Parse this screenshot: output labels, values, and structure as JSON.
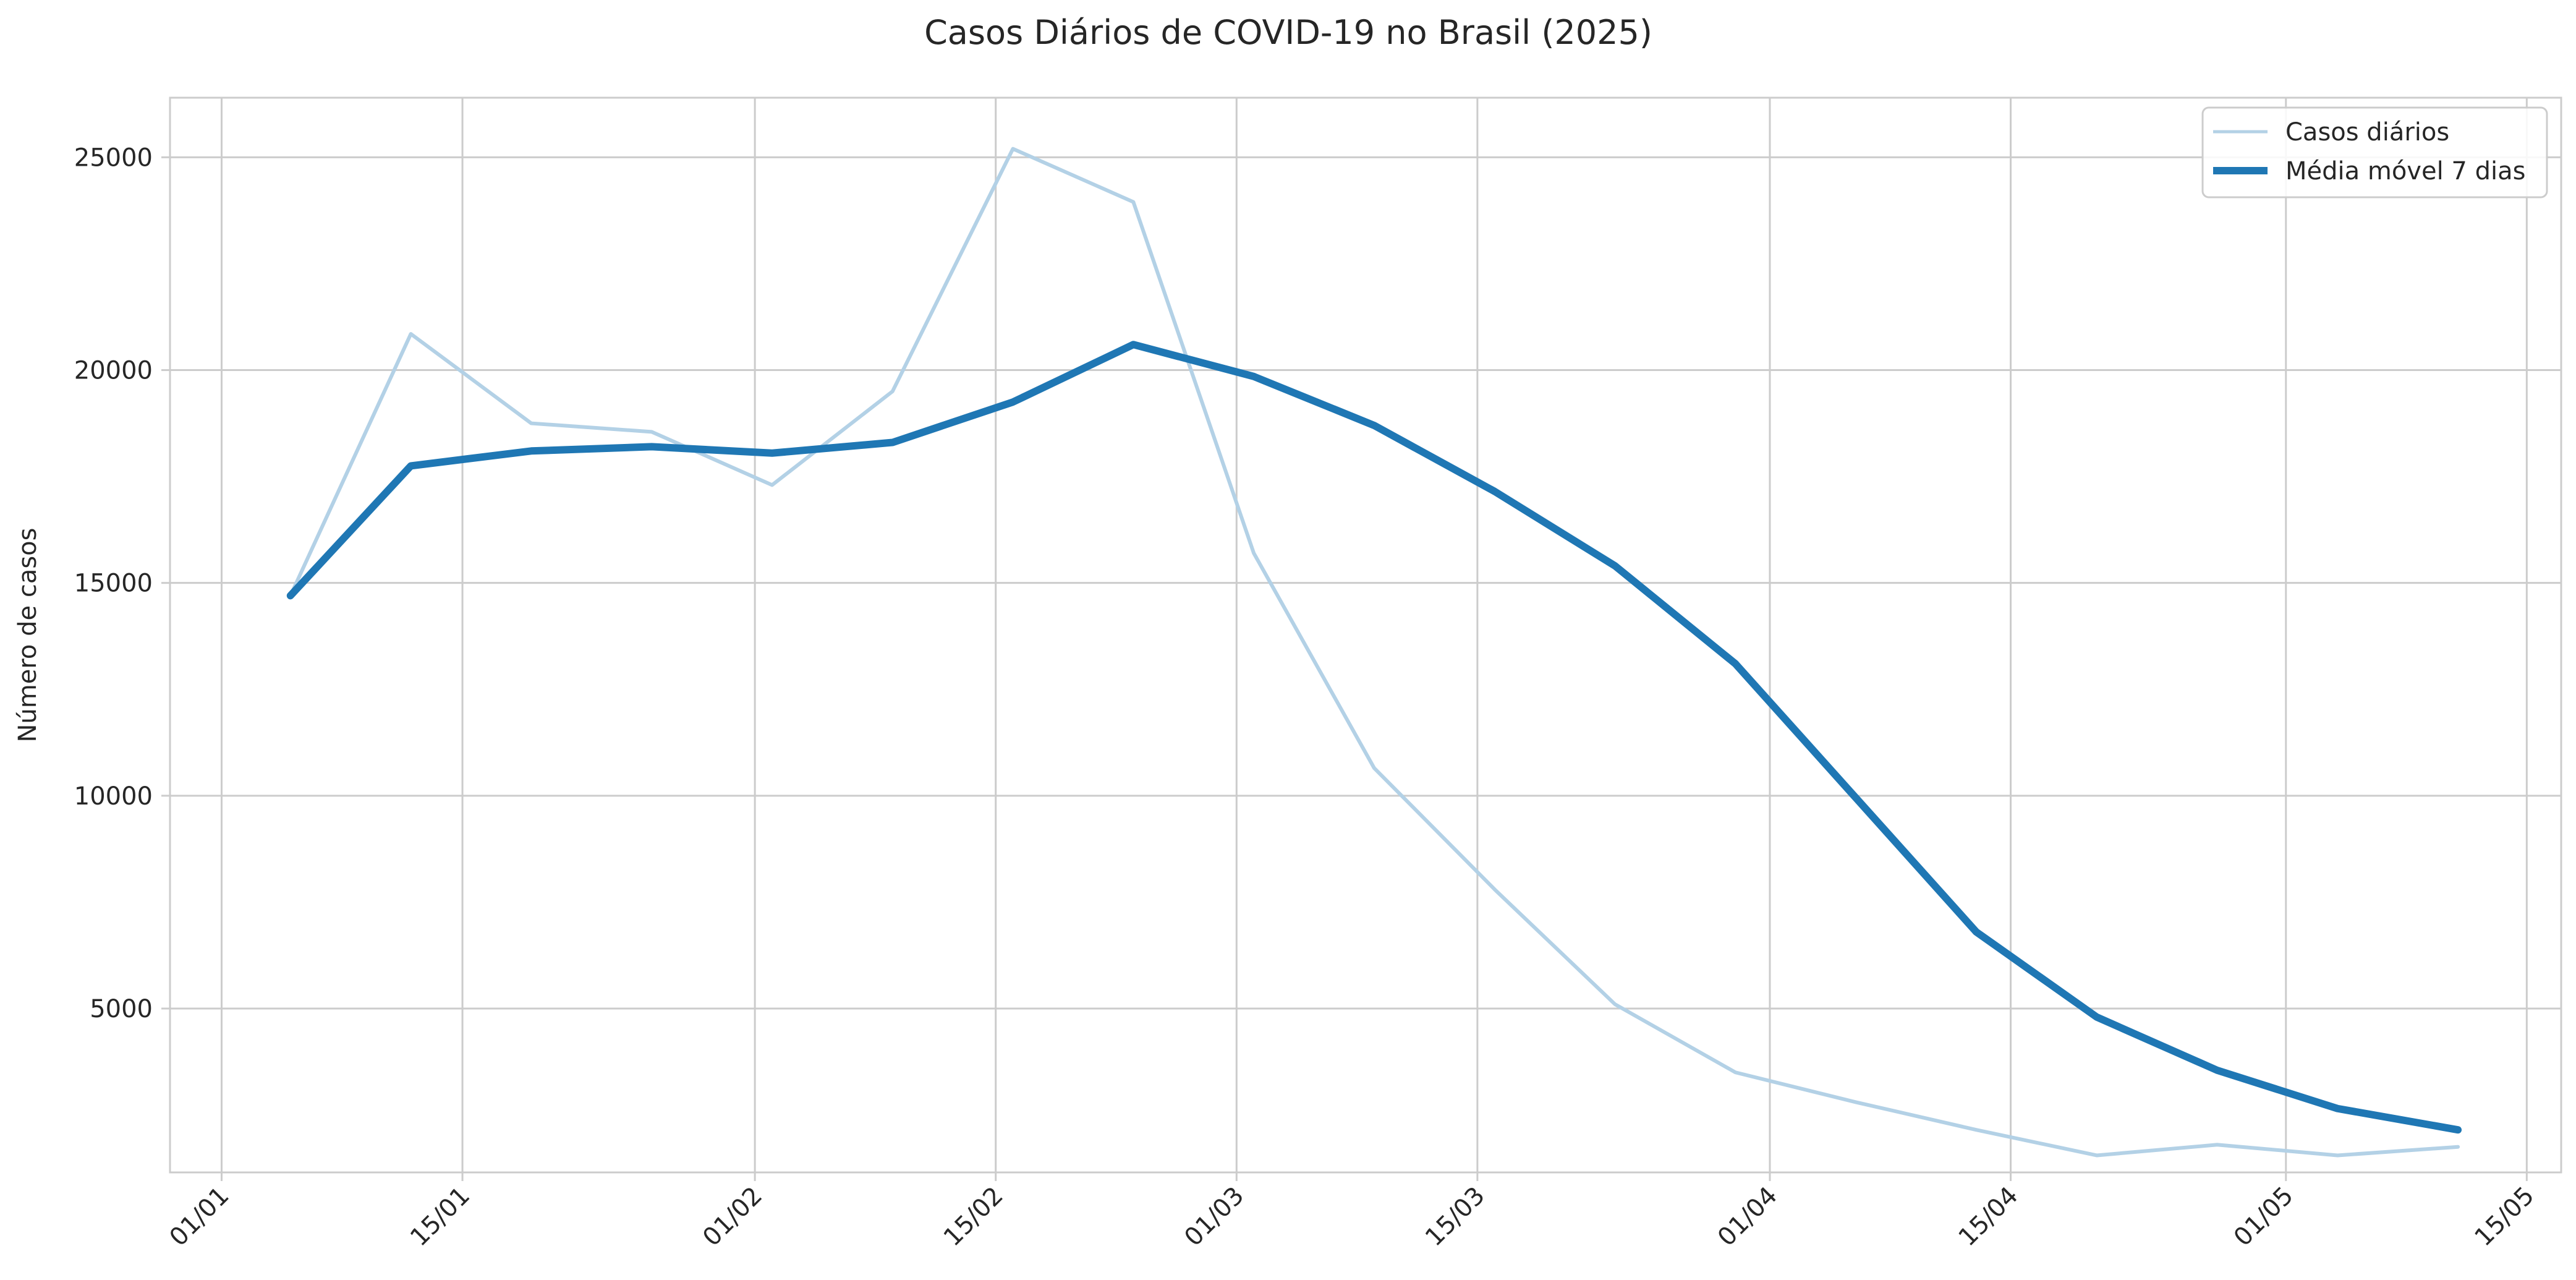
{
  "chart_data": {
    "type": "line",
    "title": "Casos Diários de COVID-19 no Brasil (2025)",
    "xlabel": "",
    "ylabel": "Número de casos",
    "x_tick_labels": [
      "01/01",
      "15/01",
      "01/02",
      "15/02",
      "01/03",
      "15/03",
      "01/04",
      "15/04",
      "01/05",
      "15/05"
    ],
    "x_ticks": [
      "2025-01-01",
      "2025-01-15",
      "2025-02-01",
      "2025-02-15",
      "2025-03-01",
      "2025-03-15",
      "2025-04-01",
      "2025-04-15",
      "2025-05-01",
      "2025-05-15"
    ],
    "x_range": [
      "2024-12-29",
      "2025-05-17"
    ],
    "y_ticks": [
      5000,
      10000,
      15000,
      20000,
      25000
    ],
    "ylim": [
      1150,
      26400
    ],
    "grid": true,
    "legend_position": "top-right",
    "x": [
      "2025-01-05",
      "2025-01-12",
      "2025-01-19",
      "2025-01-26",
      "2025-02-02",
      "2025-02-09",
      "2025-02-16",
      "2025-02-23",
      "2025-03-02",
      "2025-03-09",
      "2025-03-16",
      "2025-03-23",
      "2025-03-30",
      "2025-04-06",
      "2025-04-13",
      "2025-04-20",
      "2025-04-27",
      "2025-05-04",
      "2025-05-11"
    ],
    "series": [
      {
        "name": "Casos diários",
        "color": "#b3d1e6",
        "values": [
          14700,
          20850,
          18750,
          18550,
          17300,
          19500,
          25200,
          23950,
          15700,
          10650,
          7800,
          5100,
          3500,
          2800,
          2150,
          1550,
          1800,
          1550,
          1750
        ]
      },
      {
        "name": "Média móvel 7 dias",
        "color": "#1f77b4",
        "values": [
          14700,
          17750,
          18100,
          18200,
          18050,
          18300,
          19250,
          20600,
          19850,
          18700,
          17150,
          15400,
          13100,
          9950,
          6800,
          4800,
          3550,
          2650,
          2150
        ]
      }
    ]
  }
}
